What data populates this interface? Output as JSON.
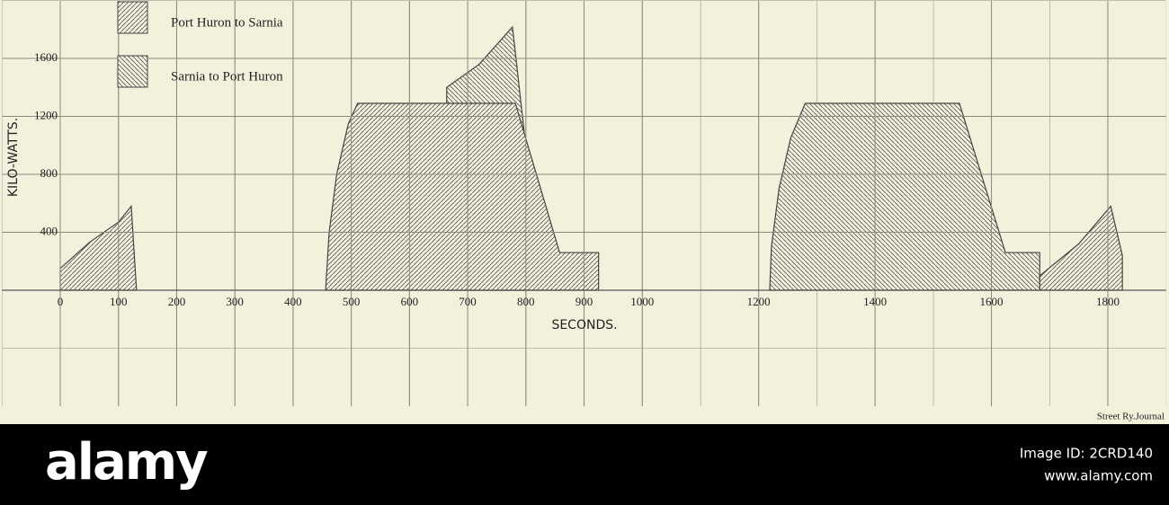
{
  "chart_data": {
    "type": "area",
    "xlabel": "SECONDS.",
    "ylabel": "KILO-WATTS.",
    "xlim": [
      -100,
      1900
    ],
    "ylim": [
      -800,
      2000
    ],
    "xticks": [
      0,
      100,
      200,
      300,
      400,
      500,
      600,
      700,
      800,
      900,
      1000,
      1200,
      1400,
      1600,
      1800
    ],
    "yticks": [
      400,
      800,
      1200,
      1600
    ],
    "grid": true,
    "series": [
      {
        "name": "Port Huron to Sarnia",
        "color": "#444444",
        "hatch": "/",
        "x": [
          0,
          50,
          100,
          122,
          131,
          null,
          456,
          462,
          475,
          495,
          511,
          782,
          858,
          925,
          null,
          1683,
          1750,
          1805,
          1825
        ],
        "values": [
          150,
          330,
          470,
          580,
          0,
          null,
          0,
          400,
          800,
          1150,
          1290,
          1290,
          260,
          260,
          null,
          100,
          320,
          580,
          240
        ]
      },
      {
        "name": "Sarnia to Port Huron",
        "color": "#444444",
        "hatch": "\\",
        "x": [
          664,
          664,
          720,
          777,
          797,
          null,
          1219,
          1222,
          1235,
          1255,
          1280,
          1545,
          1624,
          1683,
          1683
        ],
        "values": [
          1290,
          1400,
          1560,
          1817,
          1100,
          null,
          0,
          300,
          700,
          1050,
          1290,
          1290,
          260,
          260,
          0
        ]
      }
    ],
    "source": "Street Ry.Journal"
  },
  "footer": {
    "brand": "alamy",
    "image_id": "Image ID: 2CRD140",
    "url": "www.alamy.com"
  }
}
